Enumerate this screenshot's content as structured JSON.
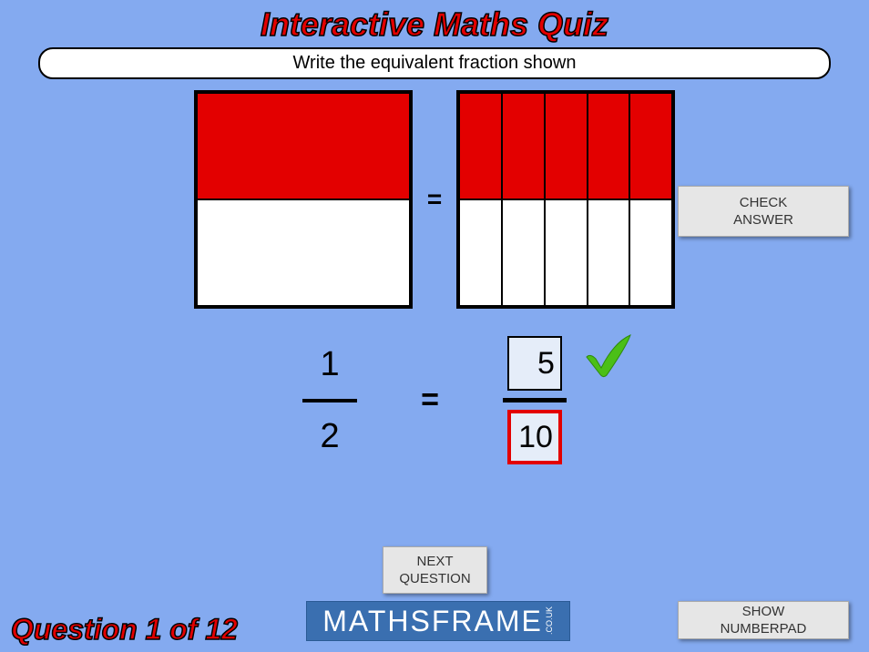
{
  "title": "Interactive Maths Quiz",
  "instruction": "Write the equivalent fraction shown",
  "left_grid": {
    "rows": 2,
    "cols": 1,
    "filled": [
      true,
      false
    ],
    "fill_color": "#e30000",
    "empty_color": "#ffffff"
  },
  "right_grid": {
    "rows": 2,
    "cols": 5,
    "filled": [
      true,
      true,
      true,
      true,
      true,
      false,
      false,
      false,
      false,
      false
    ],
    "fill_color": "#e30000",
    "empty_color": "#ffffff"
  },
  "equals_sign": "=",
  "left_fraction": {
    "numerator": "1",
    "denominator": "2"
  },
  "input_fraction": {
    "numerator": "5",
    "denominator": "10",
    "selected": "denominator"
  },
  "checkmark_color": "#4bbf17",
  "buttons": {
    "check_answer": "CHECK\nANSWER",
    "next_question": "NEXT\nQUESTION",
    "show_numberpad": "SHOW\nNUMBERPAD"
  },
  "question_counter": "Question 1 of 12",
  "logo": {
    "text": "MATHSFRAME",
    "suffix": ".CO.UK"
  },
  "colors": {
    "background": "#84aaf0",
    "title_red": "#e30000",
    "button_bg": "#e6e6e6",
    "input_bg": "#e5edf9",
    "logo_bg": "#3a6fb0"
  }
}
